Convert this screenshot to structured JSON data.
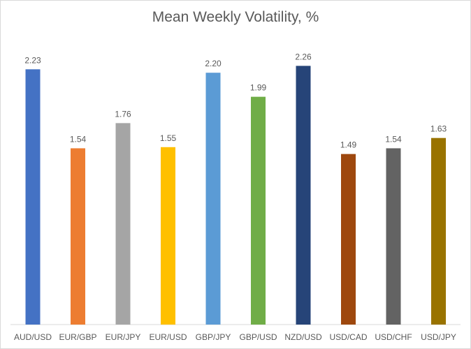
{
  "chart_data": {
    "type": "bar",
    "title": "Mean Weekly Volatility, %",
    "xlabel": "",
    "ylabel": "",
    "ylim": [
      0,
      2.5
    ],
    "grid": false,
    "legend": "none",
    "categories": [
      "AUD/USD",
      "EUR/GBP",
      "EUR/JPY",
      "EUR/USD",
      "GBP/JPY",
      "GBP/USD",
      "NZD/USD",
      "USD/CAD",
      "USD/CHF",
      "USD/JPY"
    ],
    "values": [
      2.23,
      1.54,
      1.76,
      1.55,
      2.2,
      1.99,
      2.26,
      1.49,
      1.54,
      1.63
    ],
    "value_labels": [
      "2.23",
      "1.54",
      "1.76",
      "1.55",
      "2.20",
      "1.99",
      "2.26",
      "1.49",
      "1.54",
      "1.63"
    ],
    "colors": [
      "#4472c4",
      "#ed7d31",
      "#a5a5a5",
      "#ffc000",
      "#5b9bd5",
      "#70ad47",
      "#264478",
      "#9e480e",
      "#636363",
      "#997300"
    ]
  }
}
